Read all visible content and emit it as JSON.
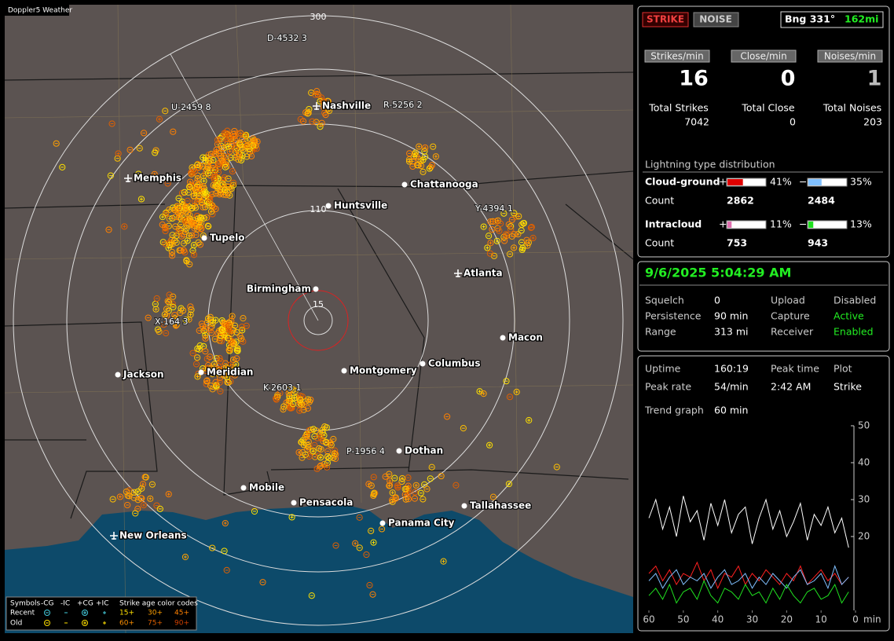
{
  "map": {
    "title": "Doppler5 Weather",
    "ring_labels": [
      "300",
      "110",
      "15"
    ],
    "cities": [
      "Nashville",
      "Memphis",
      "Tupelo",
      "Huntsville",
      "Chattanooga",
      "Atlanta",
      "Birmingham",
      "Macon",
      "Jackson",
      "Meridian",
      "Montgomery",
      "Columbus",
      "Dothan",
      "Mobile",
      "Pensacola",
      "Tallahassee",
      "Panama City",
      "New Orleans"
    ],
    "stations": [
      "D-4532 3",
      "U-2459 8",
      "R-5256 2",
      "Y-4394 1",
      "X-164 3",
      "K-2603 1",
      "P-1956 4"
    ],
    "legend": {
      "symbols": "Symbols",
      "types": [
        "-CG",
        "-IC",
        "+CG",
        "+IC"
      ],
      "age_title": "Strike age color codes",
      "rows": [
        "Recent",
        "Old"
      ],
      "recent_ages": [
        "15+",
        "30+",
        "45+"
      ],
      "old_ages": [
        "60+",
        "75+",
        "90+"
      ]
    }
  },
  "status": {
    "mode": [
      "STRIKE",
      "NOISE"
    ],
    "bearing": "Bng 331°",
    "distance": "162mi",
    "rates": [
      {
        "label": "Strikes/min",
        "value": "16",
        "total_label": "Total Strikes",
        "total": "7042"
      },
      {
        "label": "Close/min",
        "value": "0",
        "total_label": "Total Close",
        "total": "0"
      },
      {
        "label": "Noises/min",
        "value": "1",
        "total_label": "Total Noises",
        "total": "203"
      }
    ],
    "distribution": {
      "title": "Lightning type distribution",
      "plus": "+",
      "minus": "−",
      "count_label": "Count",
      "types": [
        {
          "name": "Cloud-ground",
          "pos_pct": {
            "value": 41,
            "label": "41%"
          },
          "neg_pct": {
            "value": 35,
            "label": "35%"
          },
          "pos_count": "2862",
          "neg_count": "2484"
        },
        {
          "name": "Intracloud",
          "pos_pct": {
            "value": 11,
            "label": "11%"
          },
          "neg_pct": {
            "value": 13,
            "label": "13%"
          },
          "pos_count": "753",
          "neg_count": "943"
        }
      ]
    }
  },
  "settings": {
    "datetime": "9/6/2025 5:04:29 AM",
    "rows": [
      [
        "Squelch",
        "0",
        "Upload",
        "Disabled"
      ],
      [
        "Persistence",
        "90 min",
        "Capture",
        "Active"
      ],
      [
        "Range",
        "313 mi",
        "Receiver",
        "Enabled"
      ]
    ]
  },
  "stats": {
    "rows": [
      [
        "Uptime",
        "160:19",
        "Peak time",
        "Plot"
      ],
      [
        "Peak rate",
        "54/min",
        "2:42 AM",
        "Strike"
      ]
    ],
    "trend_label": "Trend graph",
    "trend_span": "60 min"
  },
  "trend_graph": {
    "type": "line",
    "xlim": [
      60,
      0
    ],
    "ylim": [
      0,
      50
    ],
    "xticks": [
      60,
      50,
      40,
      30,
      20,
      10,
      0
    ],
    "x_unit": "min",
    "yticks": [
      50,
      40,
      30,
      20
    ],
    "x": [
      60,
      58,
      56,
      54,
      52,
      50,
      48,
      46,
      44,
      42,
      40,
      38,
      36,
      34,
      32,
      30,
      28,
      26,
      24,
      22,
      20,
      18,
      16,
      14,
      12,
      10,
      8,
      6,
      4,
      2
    ],
    "series": [
      {
        "color": "#ffffff",
        "values": [
          25,
          30,
          22,
          28,
          20,
          31,
          24,
          27,
          19,
          29,
          23,
          30,
          21,
          26,
          28,
          18,
          25,
          30,
          22,
          27,
          20,
          24,
          29,
          19,
          26,
          23,
          28,
          21,
          25,
          17
        ]
      },
      {
        "color": "#ff2020",
        "values": [
          10,
          12,
          8,
          11,
          7,
          10,
          9,
          13,
          8,
          11,
          6,
          10,
          9,
          12,
          7,
          10,
          8,
          11,
          9,
          7,
          10,
          8,
          12,
          7,
          9,
          11,
          8,
          10,
          7,
          9
        ]
      },
      {
        "color": "#80c0ff",
        "values": [
          8,
          10,
          6,
          9,
          11,
          7,
          9,
          8,
          10,
          6,
          9,
          11,
          7,
          8,
          10,
          6,
          9,
          7,
          10,
          8,
          6,
          9,
          11,
          7,
          8,
          10,
          6,
          12,
          7,
          9
        ]
      },
      {
        "color": "#20e020",
        "values": [
          4,
          6,
          3,
          7,
          2,
          5,
          6,
          3,
          8,
          4,
          2,
          6,
          5,
          3,
          7,
          4,
          5,
          2,
          6,
          3,
          7,
          4,
          2,
          5,
          6,
          3,
          4,
          7,
          2,
          5
        ]
      }
    ]
  }
}
